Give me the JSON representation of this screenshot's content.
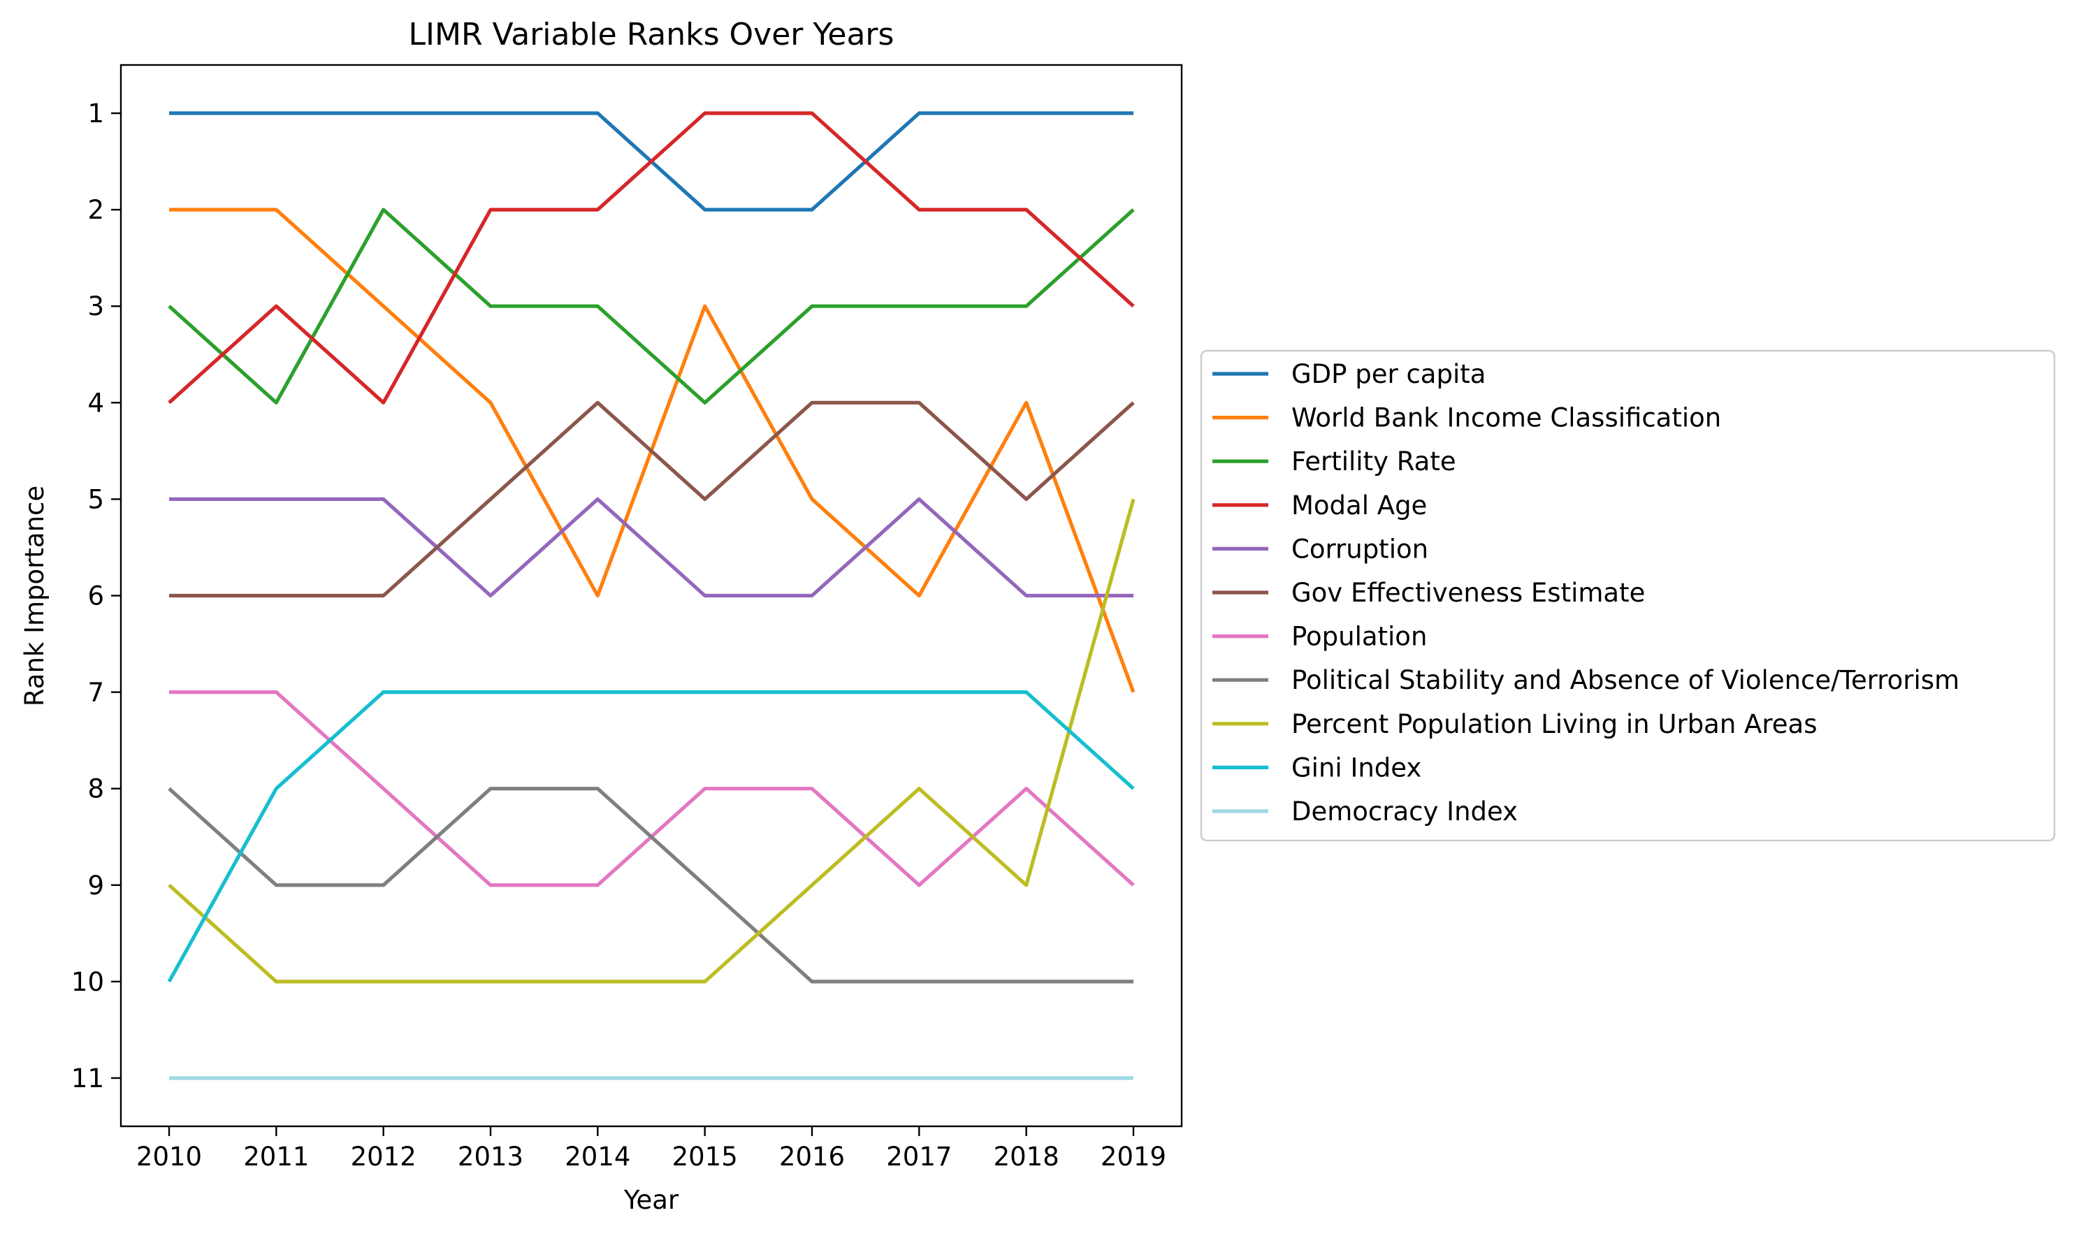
{
  "chart_data": {
    "type": "line",
    "title": "LIMR Variable Ranks Over Years",
    "xlabel": "Year",
    "ylabel": "Rank Importance",
    "x": [
      2010,
      2011,
      2012,
      2013,
      2014,
      2015,
      2016,
      2017,
      2018,
      2019
    ],
    "y_ticks": [
      1,
      2,
      3,
      4,
      5,
      6,
      7,
      8,
      9,
      10,
      11
    ],
    "ylim": [
      11.5,
      0.5
    ],
    "y_inverted": true,
    "xlim": [
      2009.55,
      2019.45
    ],
    "grid": false,
    "legend_position": "outside right, center",
    "series": [
      {
        "name": "GDP per capita",
        "color": "#1f77b4",
        "values": [
          1,
          1,
          1,
          1,
          1,
          2,
          2,
          1,
          1,
          1
        ]
      },
      {
        "name": "World Bank Income Classification",
        "color": "#ff7f0e",
        "values": [
          2,
          2,
          3,
          4,
          6,
          3,
          5,
          6,
          4,
          7
        ]
      },
      {
        "name": "Fertility Rate",
        "color": "#2ca02c",
        "values": [
          3,
          4,
          2,
          3,
          3,
          4,
          3,
          3,
          3,
          2
        ]
      },
      {
        "name": "Modal Age",
        "color": "#d62728",
        "values": [
          4,
          3,
          4,
          2,
          2,
          1,
          1,
          2,
          2,
          3
        ]
      },
      {
        "name": "Corruption",
        "color": "#9467bd",
        "values": [
          5,
          5,
          5,
          6,
          5,
          6,
          6,
          5,
          6,
          6
        ]
      },
      {
        "name": "Gov Effectiveness Estimate",
        "color": "#8c564b",
        "values": [
          6,
          6,
          6,
          5,
          4,
          5,
          4,
          4,
          5,
          4
        ]
      },
      {
        "name": "Population",
        "color": "#e377c2",
        "values": [
          7,
          7,
          8,
          9,
          9,
          8,
          8,
          9,
          8,
          9
        ]
      },
      {
        "name": "Political Stability and Absence of Violence/Terrorism",
        "color": "#7f7f7f",
        "values": [
          8,
          9,
          9,
          8,
          8,
          9,
          10,
          10,
          10,
          10
        ]
      },
      {
        "name": "Percent Population Living in Urban Areas",
        "color": "#bcbd22",
        "values": [
          9,
          10,
          10,
          10,
          10,
          10,
          9,
          8,
          9,
          5
        ]
      },
      {
        "name": "Gini Index",
        "color": "#17becf",
        "values": [
          10,
          8,
          7,
          7,
          7,
          7,
          7,
          7,
          7,
          8
        ]
      },
      {
        "name": "Democracy Index",
        "color": "#9edae5",
        "values": [
          11,
          11,
          11,
          11,
          11,
          11,
          11,
          11,
          11,
          11
        ]
      }
    ]
  }
}
